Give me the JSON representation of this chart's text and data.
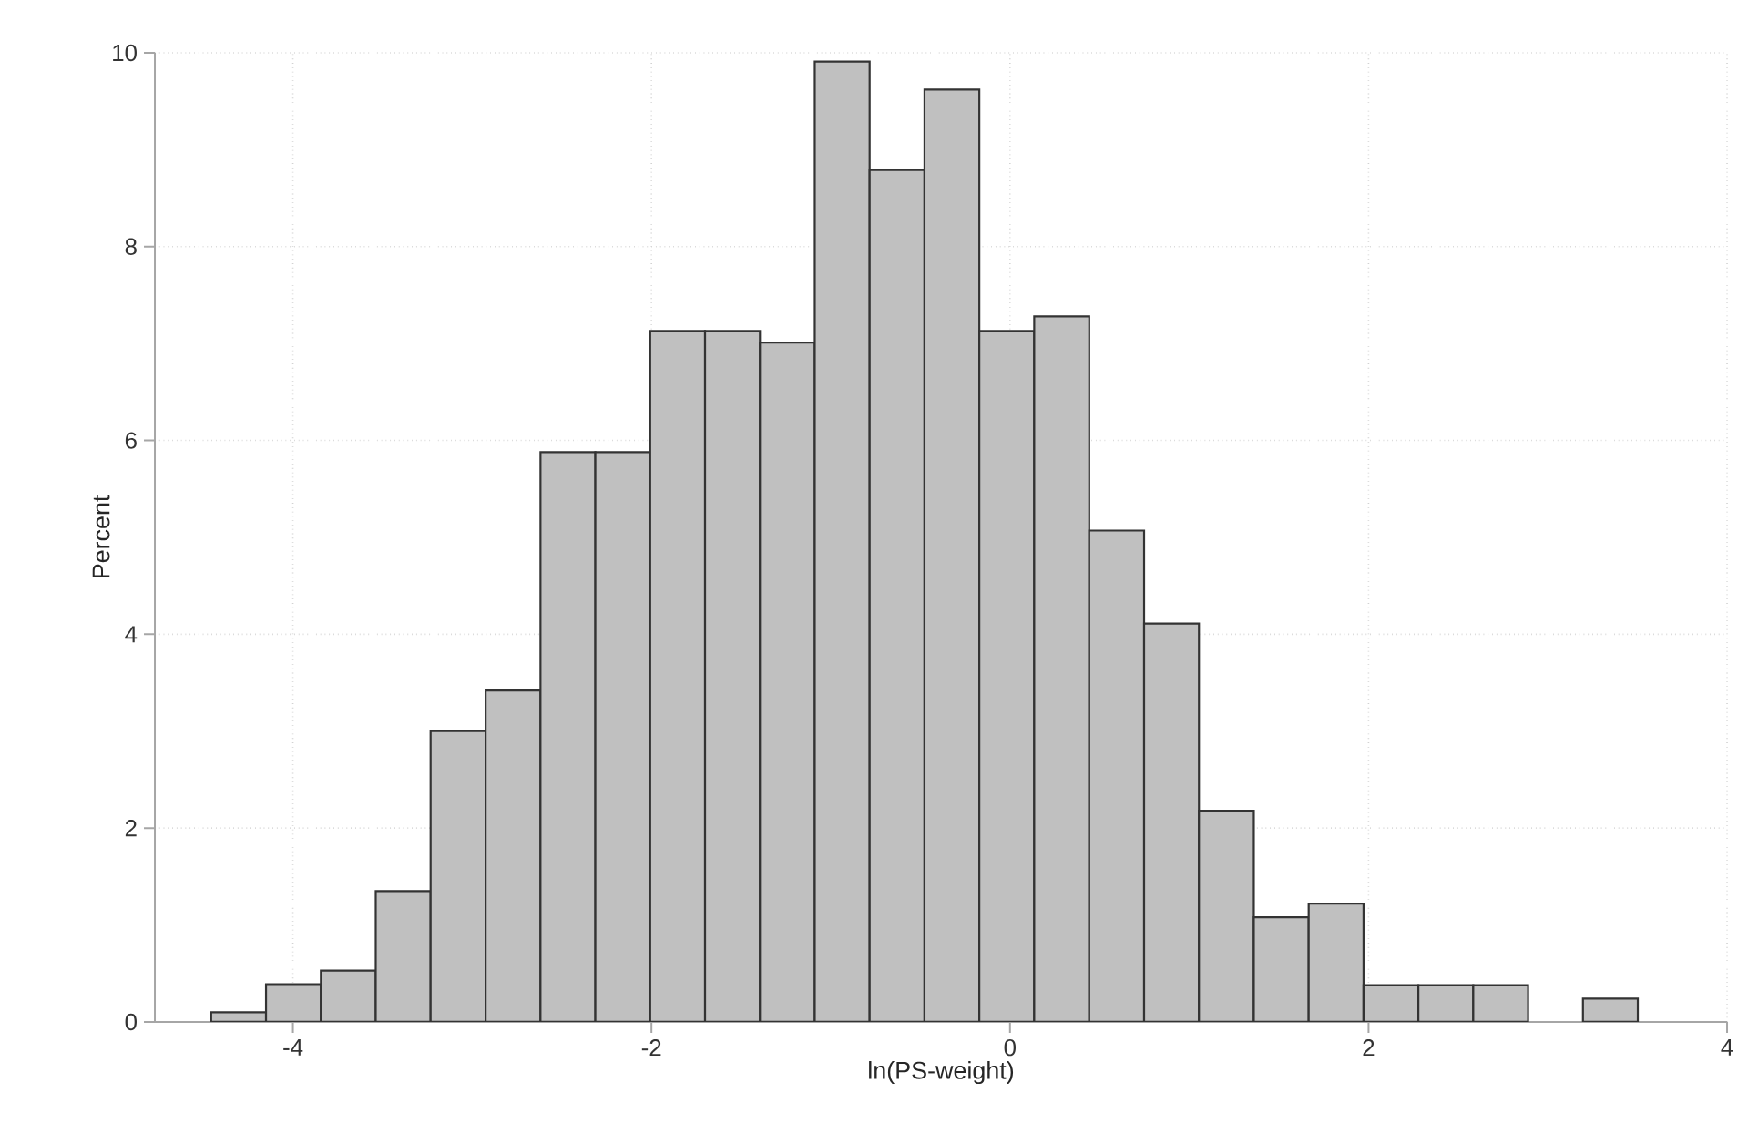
{
  "chart_data": {
    "type": "histogram",
    "xlabel": "ln(PS-weight)",
    "ylabel": "Percent",
    "bins": [
      -4.456,
      -4.15,
      -3.844,
      -3.538,
      -3.232,
      -2.925,
      -2.619,
      -2.313,
      -2.007,
      -1.701,
      -1.395,
      -1.089,
      -0.783,
      -0.477,
      -0.171,
      0.135,
      0.442,
      0.748,
      1.054,
      1.36,
      1.666,
      1.972,
      2.278,
      2.584,
      2.89,
      3.196,
      3.502
    ],
    "values": [
      0.1,
      0.39,
      0.53,
      1.35,
      3.0,
      3.42,
      5.88,
      5.88,
      7.13,
      7.13,
      7.01,
      9.91,
      8.79,
      9.62,
      7.13,
      7.28,
      5.07,
      4.11,
      2.18,
      1.08,
      1.22,
      0.38,
      0.38,
      0.38,
      0,
      0.24
    ],
    "color": "#c0c0c0",
    "xlim": [
      -4.77,
      4
    ],
    "ylim": [
      0,
      10
    ],
    "xticks": [
      -4,
      -2,
      0,
      2,
      4
    ],
    "yticks": [
      0,
      2,
      4,
      6,
      8,
      10
    ],
    "grid": true
  }
}
